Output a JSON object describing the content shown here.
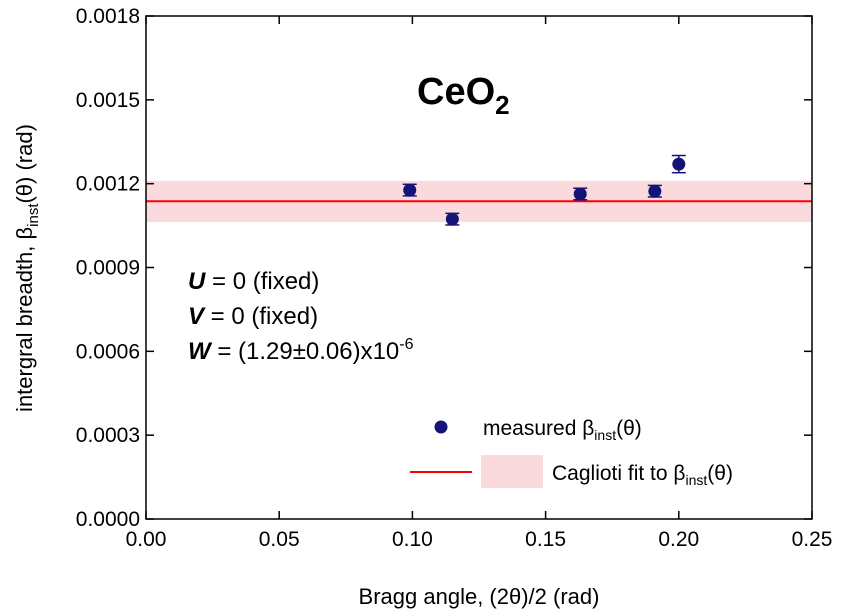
{
  "chart_data": {
    "type": "scatter",
    "title": "CeO",
    "title_subscript": "2",
    "xlabel": "Bragg angle, (2θ)/2 (rad)",
    "ylabel": {
      "main": "intergral breadth, β",
      "sub": "inst",
      "tail": "(θ) (rad)"
    },
    "xlim": [
      0.0,
      0.25
    ],
    "ylim": [
      0.0,
      0.0018
    ],
    "x_ticks": [
      "0.00",
      "0.05",
      "0.10",
      "0.15",
      "0.20",
      "0.25"
    ],
    "y_ticks": [
      "0.0000",
      "0.0003",
      "0.0006",
      "0.0009",
      "0.0012",
      "0.0015",
      "0.0018"
    ],
    "x_tick_values": [
      0.0,
      0.05,
      0.1,
      0.15,
      0.2,
      0.25
    ],
    "y_tick_values": [
      0.0,
      0.0003,
      0.0006,
      0.0009,
      0.0012,
      0.0015,
      0.0018
    ],
    "series": [
      {
        "name": "measured β_inst(θ)",
        "color": "#141478",
        "points": [
          {
            "x": 0.099,
            "y": 0.001177,
            "err": 1e-05
          },
          {
            "x": 0.115,
            "y": 0.001073,
            "err": 1e-05
          },
          {
            "x": 0.163,
            "y": 0.001163,
            "err": 1e-05
          },
          {
            "x": 0.191,
            "y": 0.001173,
            "err": 1e-05
          },
          {
            "x": 0.2,
            "y": 0.00127,
            "err": 2e-05
          }
        ]
      },
      {
        "name": "Caglioti fit to β_inst(θ)",
        "color": "#ff0000",
        "band_color": "#fadadd",
        "fit_value": 0.001137,
        "band_low": 0.001063,
        "band_high": 0.00121
      }
    ],
    "legend": {
      "placement": "bottom-right",
      "entries": [
        {
          "main": "measured β",
          "sub": "inst",
          "tail": "(θ)"
        },
        {
          "main": "Caglioti fit to β",
          "sub": "inst",
          "tail": "(θ)"
        }
      ]
    },
    "annotations": {
      "u_label": "U",
      "u_text": " = 0 (fixed)",
      "v_label": "V",
      "v_text": " = 0 (fixed)",
      "w_label": "W",
      "w_text": " = (1.29±0.06)x10",
      "w_exp": "-6"
    },
    "grid": false
  }
}
